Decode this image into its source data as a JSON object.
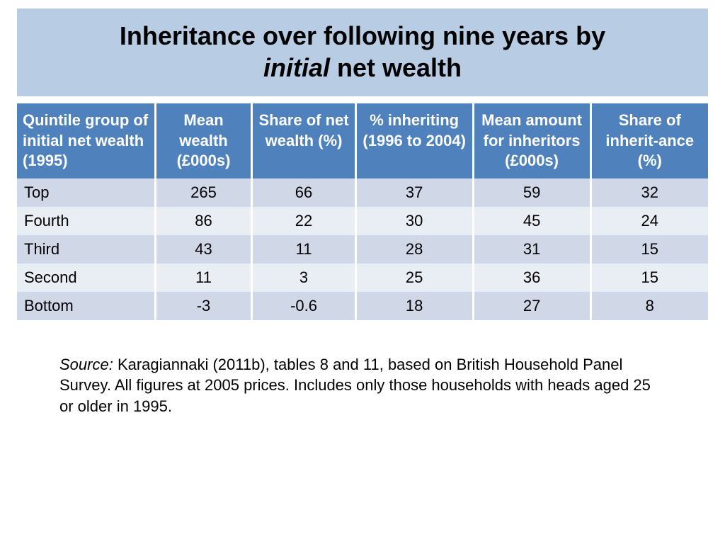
{
  "title": {
    "line1": "Inheritance over following nine years by",
    "line2_italic": "initial",
    "line2_rest": " net wealth"
  },
  "table": {
    "title_band_bg": "#b8cce4",
    "header_bg": "#4f81bd",
    "header_fg": "#ffffff",
    "row_odd_bg": "#d0d8e8",
    "row_even_bg": "#e9edf4",
    "header_fontsize": 22,
    "cell_fontsize": 22,
    "col_widths_pct": [
      20,
      14,
      15,
      17,
      17,
      17
    ],
    "columns": [
      "Quintile group of initial net wealth (1995)",
      "Mean wealth (£000s)",
      "Share of net wealth (%)",
      "% inheriting (1996 to 2004)",
      "Mean amount for inheritors (£000s)",
      "Share of inherit-ance (%)"
    ],
    "rows": [
      [
        "Top",
        "265",
        "66",
        "37",
        "59",
        "32"
      ],
      [
        "Fourth",
        "86",
        "22",
        "30",
        "45",
        "24"
      ],
      [
        "Third",
        "43",
        "11",
        "28",
        "31",
        "15"
      ],
      [
        "Second",
        "11",
        "3",
        "25",
        "36",
        "15"
      ],
      [
        "Bottom",
        "-3",
        "-0.6",
        "18",
        "27",
        "8"
      ]
    ]
  },
  "source": {
    "label": "Source:",
    "text": " Karagiannaki (2011b), tables 8 and 11, based on British Household Panel Survey.  All figures at 2005 prices.  Includes only those households with heads aged 25 or older in 1995."
  }
}
